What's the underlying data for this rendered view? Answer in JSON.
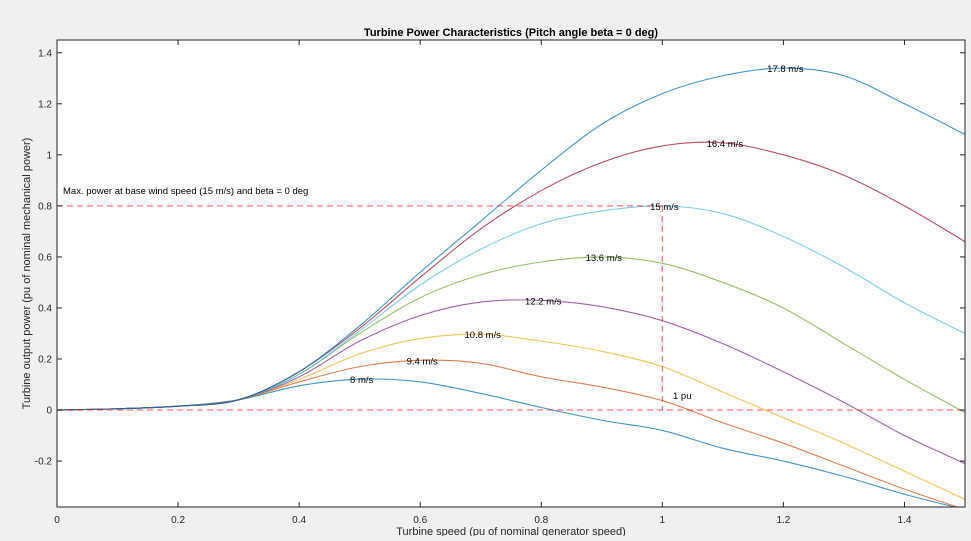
{
  "chart_data": {
    "type": "line",
    "title": "Turbine Power Characteristics (Pitch angle beta = 0 deg)",
    "xlabel": "Turbine speed (pu of nominal generator speed)",
    "ylabel": "Turbine output power (pu of nominal mechanical power)",
    "xlim": [
      0,
      1.5
    ],
    "ylim": [
      -0.38,
      1.45
    ],
    "xticks": [
      0,
      0.2,
      0.4,
      0.6,
      0.8,
      1,
      1.2,
      1.4
    ],
    "xtick_labels": [
      "0",
      "0.2",
      "0.4",
      "0.6",
      "0.8",
      "1",
      "1.2",
      "1.4"
    ],
    "yticks": [
      -0.2,
      0,
      0.2,
      0.4,
      0.6,
      0.8,
      1,
      1.2,
      1.4
    ],
    "ytick_labels": [
      "-0.2",
      "0",
      "0.2",
      "0.4",
      "0.6",
      "0.8",
      "1",
      "1.2",
      "1.4"
    ],
    "grid": false,
    "x": [
      0,
      0.1,
      0.2,
      0.3,
      0.4,
      0.5,
      0.6,
      0.7,
      0.8,
      0.9,
      1.0,
      1.1,
      1.2,
      1.3,
      1.4,
      1.5
    ],
    "series": [
      {
        "name": "8 m/s",
        "color": "#0072bd",
        "values": [
          0,
          0.005,
          0.015,
          0.04,
          0.095,
          0.121,
          0.11,
          0.065,
          0.01,
          -0.04,
          -0.08,
          -0.15,
          -0.2,
          -0.26,
          -0.33,
          -0.39
        ]
      },
      {
        "name": "9.4 m/s",
        "color": "#d95319",
        "values": [
          0,
          0.005,
          0.015,
          0.04,
          0.11,
          0.17,
          0.195,
          0.183,
          0.13,
          0.09,
          0.037,
          -0.05,
          -0.13,
          -0.22,
          -0.31,
          -0.39
        ]
      },
      {
        "name": "10.8 m/s",
        "color": "#edb120",
        "values": [
          0,
          0.005,
          0.015,
          0.04,
          0.12,
          0.22,
          0.28,
          0.297,
          0.27,
          0.23,
          0.17,
          0.07,
          -0.03,
          -0.13,
          -0.24,
          -0.35
        ]
      },
      {
        "name": "12.2 m/s",
        "color": "#7e2f8e",
        "values": [
          0,
          0.005,
          0.015,
          0.04,
          0.13,
          0.27,
          0.37,
          0.423,
          0.43,
          0.405,
          0.35,
          0.26,
          0.15,
          0.03,
          -0.1,
          -0.21
        ]
      },
      {
        "name": "13.6 m/s",
        "color": "#77ac30",
        "values": [
          0,
          0.005,
          0.015,
          0.04,
          0.14,
          0.3,
          0.44,
          0.53,
          0.58,
          0.6,
          0.575,
          0.5,
          0.4,
          0.26,
          0.12,
          -0.01
        ]
      },
      {
        "name": "15 m/s",
        "color": "#4dbeee",
        "values": [
          0,
          0.005,
          0.015,
          0.04,
          0.14,
          0.31,
          0.49,
          0.63,
          0.73,
          0.78,
          0.8,
          0.77,
          0.68,
          0.56,
          0.42,
          0.3
        ]
      },
      {
        "name": "16.4 m/s",
        "color": "#a2142f",
        "values": [
          0,
          0.005,
          0.015,
          0.04,
          0.15,
          0.32,
          0.52,
          0.71,
          0.86,
          0.97,
          1.035,
          1.047,
          1.0,
          0.92,
          0.8,
          0.66
        ]
      },
      {
        "name": "17.8 m/s",
        "color": "#0072bd",
        "values": [
          0,
          0.005,
          0.015,
          0.04,
          0.15,
          0.33,
          0.54,
          0.74,
          0.94,
          1.12,
          1.24,
          1.31,
          1.34,
          1.31,
          1.2,
          1.08
        ]
      }
    ],
    "annotations": {
      "max_power_label": "Max. power at base wind speed (15 m/s) and beta = 0 deg",
      "one_pu_label": "1 pu",
      "reference_power": 0.8,
      "reference_speed": 1,
      "reference_color": "#ff0000"
    }
  }
}
